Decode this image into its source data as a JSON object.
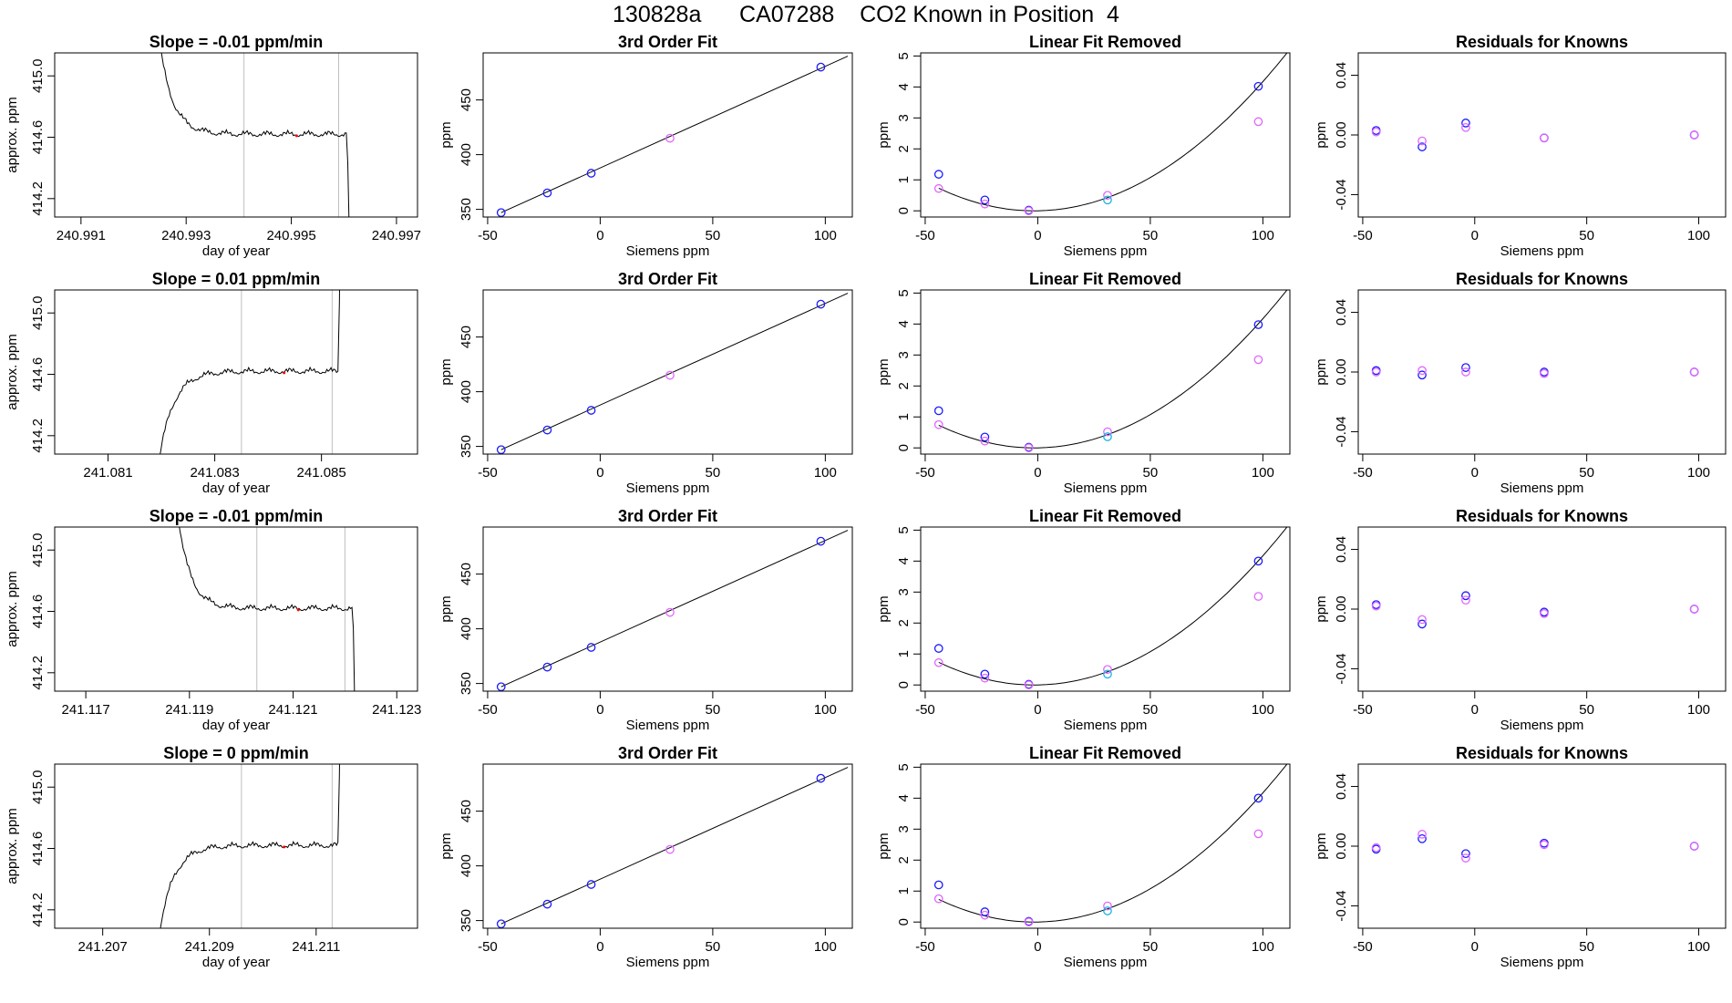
{
  "header": {
    "title": "130828a      CA07288    CO2 Known in Position  4"
  },
  "colors": {
    "line": "#000000",
    "marker_blue": "#1a1aff",
    "marker_magenta": "#e066ff",
    "marker_cyan": "#1ab2e6",
    "vline": "#bebebe",
    "red_dot": "#ff0000"
  },
  "chart_data": [
    {
      "type": "line",
      "row": 1,
      "title": "Slope =  -0.01  ppm/min",
      "xlabel": "day of year",
      "ylabel": "approx. ppm",
      "xlim": [
        240.9905,
        240.9974
      ],
      "ylim": [
        414.08,
        415.15
      ],
      "xticks": [
        "240.991",
        "240.993",
        "240.995",
        "240.997"
      ],
      "xtick_values": [
        240.991,
        240.993,
        240.995,
        240.997
      ],
      "yticks": [
        "414.2",
        "414.6",
        "415.0"
      ],
      "ytick_values": [
        414.2,
        414.6,
        415.0
      ],
      "vlines": [
        240.9941,
        240.9959
      ],
      "shape": "decay",
      "mark_x": 240.9951
    },
    {
      "type": "line",
      "row": 1,
      "title": "3rd Order Fit",
      "xlabel": "Siemens ppm",
      "ylabel": "ppm",
      "xlim": [
        -52,
        112
      ],
      "ylim": [
        343,
        493
      ],
      "xticks": [
        "-50",
        "0",
        "50",
        "100"
      ],
      "xtick_values": [
        -50,
        0,
        50,
        100
      ],
      "yticks": [
        "350",
        "400",
        "450"
      ],
      "ytick_values": [
        350,
        400,
        450
      ],
      "points": [
        {
          "x": -44,
          "y": 347,
          "color": "blue"
        },
        {
          "x": -23.5,
          "y": 365,
          "color": "blue"
        },
        {
          "x": -4,
          "y": 383,
          "color": "blue"
        },
        {
          "x": 31,
          "y": 415,
          "color": "magenta"
        },
        {
          "x": 98,
          "y": 480,
          "color": "blue"
        }
      ],
      "curve": "linear"
    },
    {
      "type": "scatter",
      "row": 1,
      "title": "Linear Fit Removed",
      "xlabel": "Siemens ppm",
      "ylabel": "ppm",
      "xlim": [
        -52,
        112
      ],
      "ylim": [
        -0.2,
        5.1
      ],
      "xticks": [
        "-50",
        "0",
        "50",
        "100"
      ],
      "xtick_values": [
        -50,
        0,
        50,
        100
      ],
      "yticks": [
        "0",
        "1",
        "2",
        "3",
        "4",
        "5"
      ],
      "ytick_values": [
        0,
        1,
        2,
        3,
        4,
        5
      ],
      "points": [
        {
          "x": -44,
          "y": 1.18,
          "color": "blue"
        },
        {
          "x": -44,
          "y": 0.72,
          "color": "magenta"
        },
        {
          "x": -23.5,
          "y": 0.35,
          "color": "blue"
        },
        {
          "x": -23.5,
          "y": 0.22,
          "color": "magenta"
        },
        {
          "x": -4,
          "y": 0.02,
          "color": "blue"
        },
        {
          "x": -4,
          "y": 0.0,
          "color": "magenta"
        },
        {
          "x": 31,
          "y": 0.5,
          "color": "magenta"
        },
        {
          "x": 31,
          "y": 0.35,
          "color": "cyan"
        },
        {
          "x": 98,
          "y": 4.02,
          "color": "blue"
        },
        {
          "x": 98,
          "y": 2.88,
          "color": "magenta"
        }
      ],
      "curve": "quadratic"
    },
    {
      "type": "scatter",
      "row": 1,
      "title": "Residuals for Knowns",
      "xlabel": "Siemens ppm",
      "ylabel": "ppm",
      "xlim": [
        -52,
        112
      ],
      "ylim": [
        -0.055,
        0.055
      ],
      "xticks": [
        "-50",
        "0",
        "50",
        "100"
      ],
      "xtick_values": [
        -50,
        0,
        50,
        100
      ],
      "yticks": [
        "-0.04",
        "0.00",
        "0.04"
      ],
      "ytick_values": [
        -0.04,
        0.0,
        0.04
      ],
      "points": [
        {
          "x": -44,
          "y": 0.003,
          "color": "blue"
        },
        {
          "x": -44,
          "y": 0.002,
          "color": "magenta"
        },
        {
          "x": -23.5,
          "y": -0.008,
          "color": "blue"
        },
        {
          "x": -23.5,
          "y": -0.004,
          "color": "magenta"
        },
        {
          "x": -4,
          "y": 0.008,
          "color": "blue"
        },
        {
          "x": -4,
          "y": 0.005,
          "color": "magenta"
        },
        {
          "x": 31,
          "y": -0.002,
          "color": "blue"
        },
        {
          "x": 31,
          "y": -0.002,
          "color": "magenta"
        },
        {
          "x": 98,
          "y": 0.0,
          "color": "blue"
        },
        {
          "x": 98,
          "y": 0.0,
          "color": "magenta"
        }
      ]
    },
    {
      "type": "line",
      "row": 2,
      "title": "Slope =  0.01  ppm/min",
      "xlabel": "day of year",
      "ylabel": "approx. ppm",
      "xlim": [
        241.08,
        241.0868
      ],
      "ylim": [
        414.08,
        415.15
      ],
      "xticks": [
        "241.081",
        "241.083",
        "241.085"
      ],
      "xtick_values": [
        241.081,
        241.083,
        241.085
      ],
      "yticks": [
        "414.2",
        "414.6",
        "415.0"
      ],
      "ytick_values": [
        414.2,
        414.6,
        415.0
      ],
      "vlines": [
        241.0835,
        241.0852
      ],
      "shape": "rise",
      "mark_x": 241.0843
    },
    {
      "type": "line",
      "row": 2,
      "title": "3rd Order Fit",
      "xlabel": "Siemens ppm",
      "ylabel": "ppm",
      "xlim": [
        -52,
        112
      ],
      "ylim": [
        343,
        493
      ],
      "xticks": [
        "-50",
        "0",
        "50",
        "100"
      ],
      "xtick_values": [
        -50,
        0,
        50,
        100
      ],
      "yticks": [
        "350",
        "400",
        "450"
      ],
      "ytick_values": [
        350,
        400,
        450
      ],
      "points": [
        {
          "x": -44,
          "y": 347,
          "color": "blue"
        },
        {
          "x": -23.5,
          "y": 365,
          "color": "blue"
        },
        {
          "x": -4,
          "y": 383,
          "color": "blue"
        },
        {
          "x": 31,
          "y": 415,
          "color": "magenta"
        },
        {
          "x": 98,
          "y": 480,
          "color": "blue"
        }
      ],
      "curve": "linear"
    },
    {
      "type": "scatter",
      "row": 2,
      "title": "Linear Fit Removed",
      "xlabel": "Siemens ppm",
      "ylabel": "ppm",
      "xlim": [
        -52,
        112
      ],
      "ylim": [
        -0.2,
        5.1
      ],
      "xticks": [
        "-50",
        "0",
        "50",
        "100"
      ],
      "xtick_values": [
        -50,
        0,
        50,
        100
      ],
      "yticks": [
        "0",
        "1",
        "2",
        "3",
        "4",
        "5"
      ],
      "ytick_values": [
        0,
        1,
        2,
        3,
        4,
        5
      ],
      "points": [
        {
          "x": -44,
          "y": 1.2,
          "color": "blue"
        },
        {
          "x": -44,
          "y": 0.75,
          "color": "magenta"
        },
        {
          "x": -23.5,
          "y": 0.35,
          "color": "blue"
        },
        {
          "x": -23.5,
          "y": 0.22,
          "color": "magenta"
        },
        {
          "x": -4,
          "y": 0.02,
          "color": "blue"
        },
        {
          "x": -4,
          "y": 0.0,
          "color": "magenta"
        },
        {
          "x": 31,
          "y": 0.52,
          "color": "magenta"
        },
        {
          "x": 31,
          "y": 0.36,
          "color": "cyan"
        },
        {
          "x": 98,
          "y": 3.98,
          "color": "blue"
        },
        {
          "x": 98,
          "y": 2.85,
          "color": "magenta"
        }
      ],
      "curve": "quadratic"
    },
    {
      "type": "scatter",
      "row": 2,
      "title": "Residuals for Knowns",
      "xlabel": "Siemens ppm",
      "ylabel": "ppm",
      "xlim": [
        -52,
        112
      ],
      "ylim": [
        -0.055,
        0.055
      ],
      "xticks": [
        "-50",
        "0",
        "50",
        "100"
      ],
      "xtick_values": [
        -50,
        0,
        50,
        100
      ],
      "yticks": [
        "-0.04",
        "0.00",
        "0.04"
      ],
      "ytick_values": [
        -0.04,
        0.0,
        0.04
      ],
      "points": [
        {
          "x": -44,
          "y": 0.001,
          "color": "blue"
        },
        {
          "x": -44,
          "y": 0.0,
          "color": "magenta"
        },
        {
          "x": -23.5,
          "y": -0.002,
          "color": "blue"
        },
        {
          "x": -23.5,
          "y": 0.001,
          "color": "magenta"
        },
        {
          "x": -4,
          "y": 0.003,
          "color": "blue"
        },
        {
          "x": -4,
          "y": 0.0,
          "color": "magenta"
        },
        {
          "x": 31,
          "y": 0.0,
          "color": "blue"
        },
        {
          "x": 31,
          "y": -0.001,
          "color": "magenta"
        },
        {
          "x": 98,
          "y": 0.0,
          "color": "blue"
        },
        {
          "x": 98,
          "y": 0.0,
          "color": "magenta"
        }
      ]
    },
    {
      "type": "line",
      "row": 3,
      "title": "Slope =  -0.01  ppm/min",
      "xlabel": "day of year",
      "ylabel": "approx. ppm",
      "xlim": [
        241.1164,
        241.1234
      ],
      "ylim": [
        414.08,
        415.15
      ],
      "xticks": [
        "241.117",
        "241.119",
        "241.121",
        "241.123"
      ],
      "xtick_values": [
        241.117,
        241.119,
        241.121,
        241.123
      ],
      "yticks": [
        "414.2",
        "414.6",
        "415.0"
      ],
      "ytick_values": [
        414.2,
        414.6,
        415.0
      ],
      "vlines": [
        241.1203,
        241.122
      ],
      "shape": "decay",
      "mark_x": 241.1211
    },
    {
      "type": "line",
      "row": 3,
      "title": "3rd Order Fit",
      "xlabel": "Siemens ppm",
      "ylabel": "ppm",
      "xlim": [
        -52,
        112
      ],
      "ylim": [
        343,
        493
      ],
      "xticks": [
        "-50",
        "0",
        "50",
        "100"
      ],
      "xtick_values": [
        -50,
        0,
        50,
        100
      ],
      "yticks": [
        "350",
        "400",
        "450"
      ],
      "ytick_values": [
        350,
        400,
        450
      ],
      "points": [
        {
          "x": -44,
          "y": 347,
          "color": "blue"
        },
        {
          "x": -23.5,
          "y": 365,
          "color": "blue"
        },
        {
          "x": -4,
          "y": 383,
          "color": "blue"
        },
        {
          "x": 31,
          "y": 415,
          "color": "magenta"
        },
        {
          "x": 98,
          "y": 480,
          "color": "blue"
        }
      ],
      "curve": "linear"
    },
    {
      "type": "scatter",
      "row": 3,
      "title": "Linear Fit Removed",
      "xlabel": "Siemens ppm",
      "ylabel": "ppm",
      "xlim": [
        -52,
        112
      ],
      "ylim": [
        -0.2,
        5.1
      ],
      "xticks": [
        "-50",
        "0",
        "50",
        "100"
      ],
      "xtick_values": [
        -50,
        0,
        50,
        100
      ],
      "yticks": [
        "0",
        "1",
        "2",
        "3",
        "4",
        "5"
      ],
      "ytick_values": [
        0,
        1,
        2,
        3,
        4,
        5
      ],
      "points": [
        {
          "x": -44,
          "y": 1.18,
          "color": "blue"
        },
        {
          "x": -44,
          "y": 0.72,
          "color": "magenta"
        },
        {
          "x": -23.5,
          "y": 0.35,
          "color": "blue"
        },
        {
          "x": -23.5,
          "y": 0.22,
          "color": "magenta"
        },
        {
          "x": -4,
          "y": 0.02,
          "color": "blue"
        },
        {
          "x": -4,
          "y": 0.0,
          "color": "magenta"
        },
        {
          "x": 31,
          "y": 0.5,
          "color": "magenta"
        },
        {
          "x": 31,
          "y": 0.35,
          "color": "cyan"
        },
        {
          "x": 98,
          "y": 4.0,
          "color": "blue"
        },
        {
          "x": 98,
          "y": 2.86,
          "color": "magenta"
        }
      ],
      "curve": "quadratic"
    },
    {
      "type": "scatter",
      "row": 3,
      "title": "Residuals for Knowns",
      "xlabel": "Siemens ppm",
      "ylabel": "ppm",
      "xlim": [
        -52,
        112
      ],
      "ylim": [
        -0.055,
        0.055
      ],
      "xticks": [
        "-50",
        "0",
        "50",
        "100"
      ],
      "xtick_values": [
        -50,
        0,
        50,
        100
      ],
      "yticks": [
        "-0.04",
        "0.00",
        "0.04"
      ],
      "ytick_values": [
        -0.04,
        0.0,
        0.04
      ],
      "points": [
        {
          "x": -44,
          "y": 0.003,
          "color": "blue"
        },
        {
          "x": -44,
          "y": 0.002,
          "color": "magenta"
        },
        {
          "x": -23.5,
          "y": -0.01,
          "color": "blue"
        },
        {
          "x": -23.5,
          "y": -0.007,
          "color": "magenta"
        },
        {
          "x": -4,
          "y": 0.009,
          "color": "blue"
        },
        {
          "x": -4,
          "y": 0.006,
          "color": "magenta"
        },
        {
          "x": 31,
          "y": -0.002,
          "color": "blue"
        },
        {
          "x": 31,
          "y": -0.003,
          "color": "magenta"
        },
        {
          "x": 98,
          "y": 0.0,
          "color": "blue"
        },
        {
          "x": 98,
          "y": 0.0,
          "color": "magenta"
        }
      ]
    },
    {
      "type": "line",
      "row": 4,
      "title": "Slope =  0  ppm/min",
      "xlabel": "day of year",
      "ylabel": "approx. ppm",
      "xlim": [
        241.2061,
        241.2129
      ],
      "ylim": [
        414.08,
        415.15
      ],
      "xticks": [
        "241.207",
        "241.209",
        "241.211"
      ],
      "xtick_values": [
        241.207,
        241.209,
        241.211
      ],
      "yticks": [
        "414.2",
        "414.6",
        "415.0"
      ],
      "ytick_values": [
        414.2,
        414.6,
        415.0
      ],
      "vlines": [
        241.2096,
        241.2113
      ],
      "shape": "rise",
      "mark_x": 241.2104
    },
    {
      "type": "line",
      "row": 4,
      "title": "3rd Order Fit",
      "xlabel": "Siemens ppm",
      "ylabel": "ppm",
      "xlim": [
        -52,
        112
      ],
      "ylim": [
        343,
        493
      ],
      "xticks": [
        "-50",
        "0",
        "50",
        "100"
      ],
      "xtick_values": [
        -50,
        0,
        50,
        100
      ],
      "yticks": [
        "350",
        "400",
        "450"
      ],
      "ytick_values": [
        350,
        400,
        450
      ],
      "points": [
        {
          "x": -44,
          "y": 347,
          "color": "blue"
        },
        {
          "x": -23.5,
          "y": 365,
          "color": "blue"
        },
        {
          "x": -4,
          "y": 383,
          "color": "blue"
        },
        {
          "x": 31,
          "y": 415,
          "color": "magenta"
        },
        {
          "x": 98,
          "y": 480,
          "color": "blue"
        }
      ],
      "curve": "linear"
    },
    {
      "type": "scatter",
      "row": 4,
      "title": "Linear Fit Removed",
      "xlabel": "Siemens ppm",
      "ylabel": "ppm",
      "xlim": [
        -52,
        112
      ],
      "ylim": [
        -0.2,
        5.1
      ],
      "xticks": [
        "-50",
        "0",
        "50",
        "100"
      ],
      "xtick_values": [
        -50,
        0,
        50,
        100
      ],
      "yticks": [
        "0",
        "1",
        "2",
        "3",
        "4",
        "5"
      ],
      "ytick_values": [
        0,
        1,
        2,
        3,
        4,
        5
      ],
      "points": [
        {
          "x": -44,
          "y": 1.2,
          "color": "blue"
        },
        {
          "x": -44,
          "y": 0.75,
          "color": "magenta"
        },
        {
          "x": -23.5,
          "y": 0.33,
          "color": "blue"
        },
        {
          "x": -23.5,
          "y": 0.22,
          "color": "magenta"
        },
        {
          "x": -4,
          "y": 0.02,
          "color": "blue"
        },
        {
          "x": -4,
          "y": 0.0,
          "color": "magenta"
        },
        {
          "x": 31,
          "y": 0.52,
          "color": "magenta"
        },
        {
          "x": 31,
          "y": 0.36,
          "color": "cyan"
        },
        {
          "x": 98,
          "y": 4.0,
          "color": "blue"
        },
        {
          "x": 98,
          "y": 2.85,
          "color": "magenta"
        }
      ],
      "curve": "quadratic"
    },
    {
      "type": "scatter",
      "row": 4,
      "title": "Residuals for Knowns",
      "xlabel": "Siemens ppm",
      "ylabel": "ppm",
      "xlim": [
        -52,
        112
      ],
      "ylim": [
        -0.055,
        0.055
      ],
      "xticks": [
        "-50",
        "0",
        "50",
        "100"
      ],
      "xtick_values": [
        -50,
        0,
        50,
        100
      ],
      "yticks": [
        "-0.04",
        "0.00",
        "0.04"
      ],
      "ytick_values": [
        -0.04,
        0.0,
        0.04
      ],
      "points": [
        {
          "x": -44,
          "y": -0.002,
          "color": "blue"
        },
        {
          "x": -44,
          "y": -0.001,
          "color": "magenta"
        },
        {
          "x": -23.5,
          "y": 0.005,
          "color": "blue"
        },
        {
          "x": -23.5,
          "y": 0.008,
          "color": "magenta"
        },
        {
          "x": -4,
          "y": -0.005,
          "color": "blue"
        },
        {
          "x": -4,
          "y": -0.008,
          "color": "magenta"
        },
        {
          "x": 31,
          "y": 0.002,
          "color": "blue"
        },
        {
          "x": 31,
          "y": 0.001,
          "color": "magenta"
        },
        {
          "x": 98,
          "y": 0.0,
          "color": "blue"
        },
        {
          "x": 98,
          "y": 0.0,
          "color": "magenta"
        }
      ]
    }
  ]
}
